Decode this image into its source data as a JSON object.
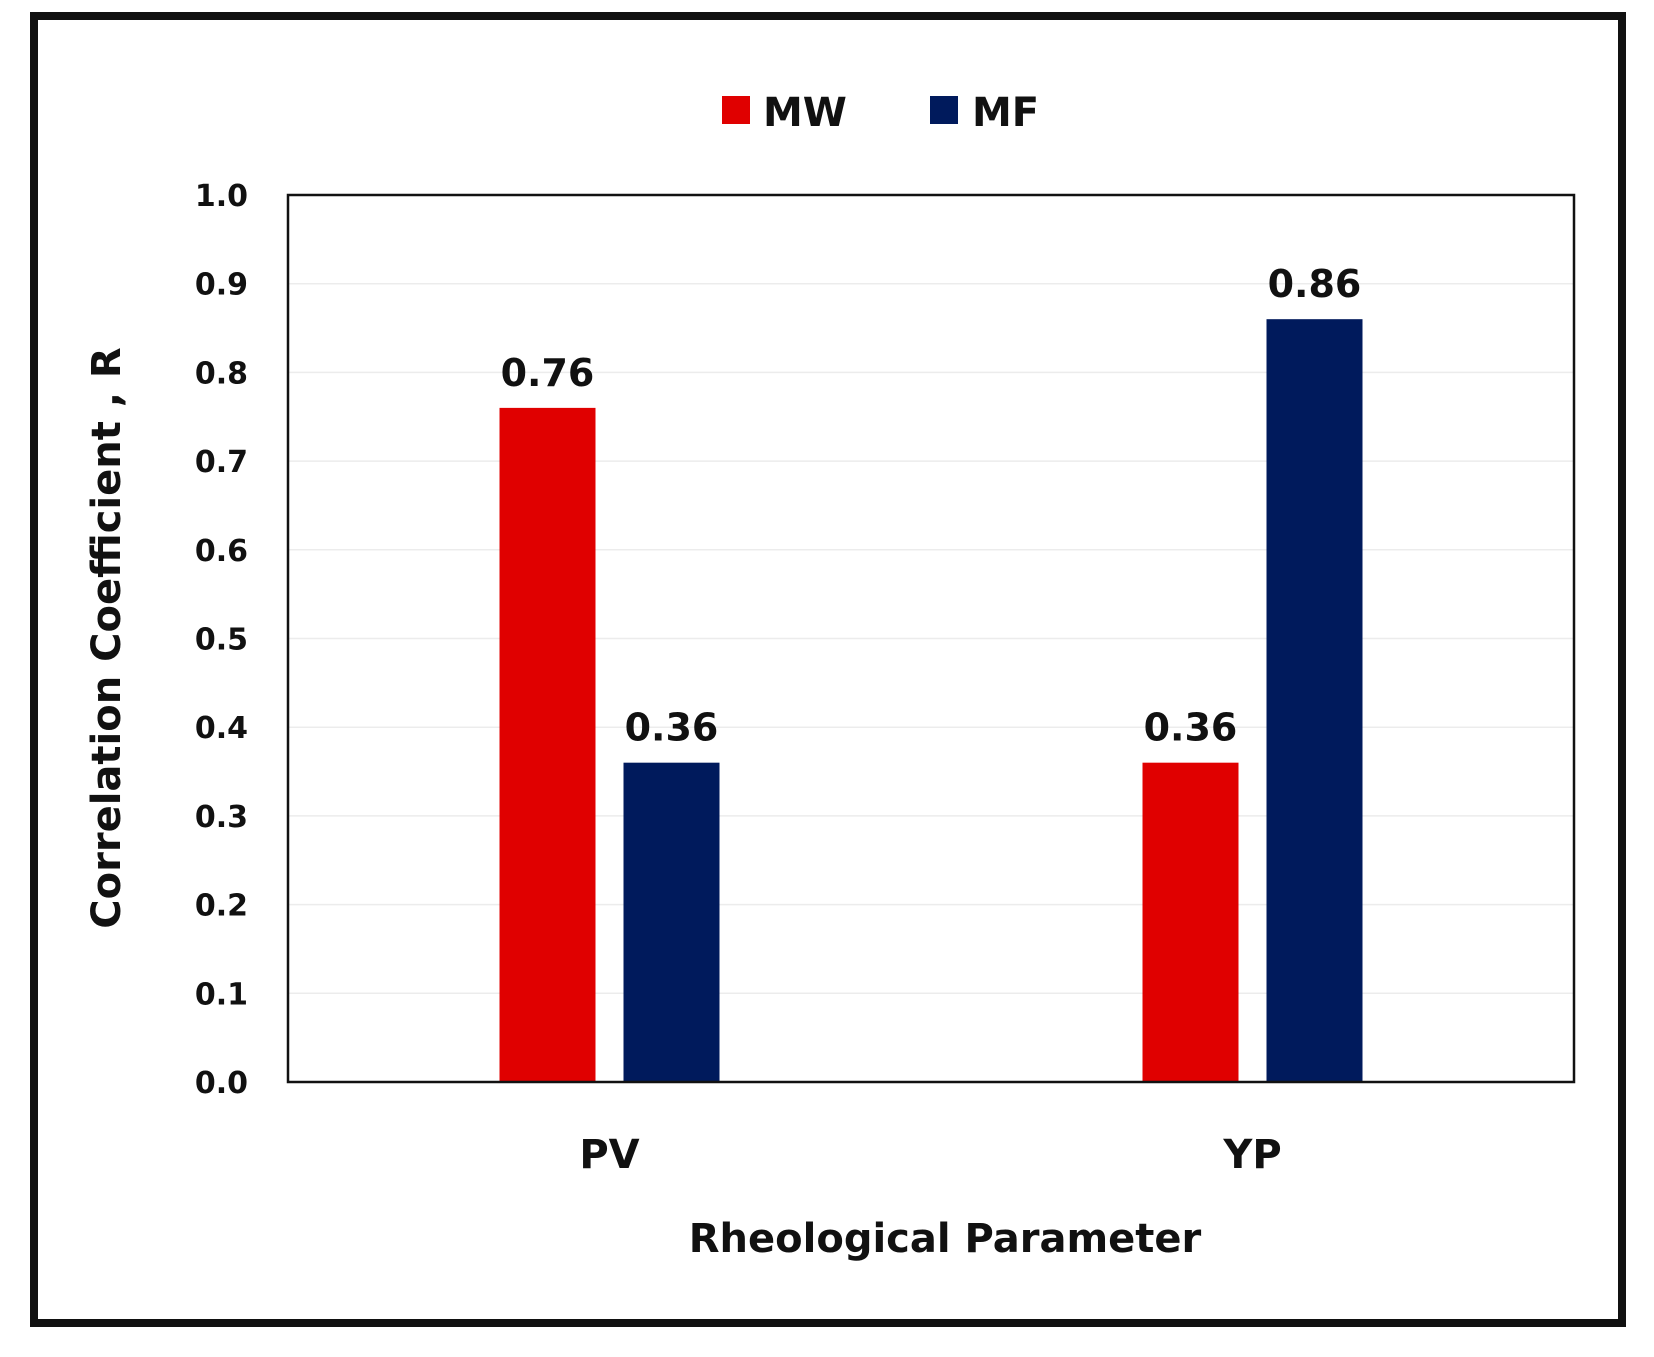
{
  "chart_data": {
    "type": "bar",
    "categories": [
      "PV",
      "YP"
    ],
    "series": [
      {
        "name": "MW",
        "values": [
          0.76,
          0.36
        ],
        "labels": [
          "0.76",
          "0.36"
        ],
        "color": "#e00000"
      },
      {
        "name": "MF",
        "values": [
          0.36,
          0.86
        ],
        "labels": [
          "0.36",
          "0.86"
        ],
        "color": "#001a5c"
      }
    ],
    "xlabel": "Rheological Parameter",
    "ylabel": "Correlation Coefficient , R",
    "ylim": [
      0,
      1.0
    ],
    "yticks": [
      "0.0",
      "0.1",
      "0.2",
      "0.3",
      "0.4",
      "0.5",
      "0.6",
      "0.7",
      "0.8",
      "0.9",
      "1.0"
    ],
    "grid": true,
    "legend_position": "top-center"
  }
}
